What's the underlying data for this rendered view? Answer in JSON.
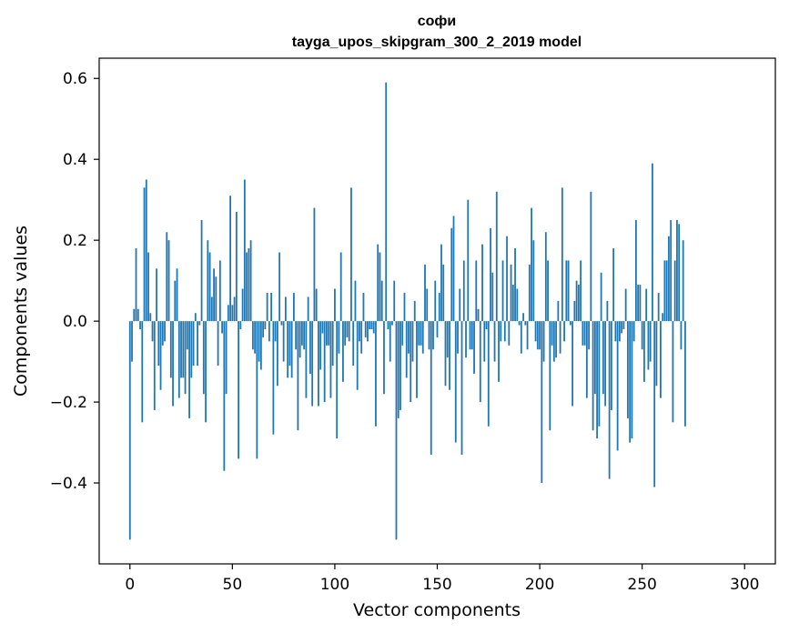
{
  "chart_data": {
    "type": "bar",
    "title": "софи",
    "subtitle": "tayga_upos_skipgram_300_2_2019 model",
    "xlabel": "Vector components",
    "ylabel": "Components values",
    "xlim": [
      -15,
      315
    ],
    "ylim": [
      -0.6,
      0.65
    ],
    "xticks": [
      0,
      50,
      100,
      150,
      200,
      250,
      300
    ],
    "yticks": [
      -0.4,
      -0.2,
      0.0,
      0.2,
      0.4,
      0.6
    ],
    "ytick_labels": [
      "−0.4",
      "−0.2",
      "0.0",
      "0.2",
      "0.4",
      "0.6"
    ],
    "xtick_labels": [
      "0",
      "50",
      "100",
      "150",
      "200",
      "250",
      "300"
    ],
    "bar_color": "#1f77b4",
    "grid": false,
    "values": [
      -0.54,
      -0.1,
      0.03,
      0.18,
      0.03,
      -0.02,
      -0.25,
      0.33,
      0.35,
      0.17,
      0.02,
      -0.05,
      -0.22,
      0.13,
      -0.11,
      -0.17,
      -0.06,
      -0.05,
      0.22,
      0.2,
      -0.14,
      -0.21,
      0.1,
      0.13,
      -0.19,
      -0.14,
      -0.14,
      -0.18,
      -0.07,
      -0.24,
      -0.14,
      -0.11,
      0.02,
      -0.11,
      -0.01,
      0.25,
      -0.18,
      -0.25,
      0.2,
      0.17,
      0.06,
      0.13,
      0.11,
      -0.11,
      0.15,
      -0.03,
      -0.37,
      -0.18,
      0.04,
      0.31,
      0.04,
      0.06,
      0.27,
      -0.34,
      -0.02,
      0.08,
      0.35,
      0.17,
      0.18,
      0.2,
      -0.07,
      -0.08,
      -0.34,
      -0.1,
      -0.12,
      -0.04,
      -0.02,
      0.07,
      -0.05,
      0.07,
      -0.28,
      -0.05,
      -0.16,
      0.17,
      -0.01,
      -0.1,
      0.06,
      -0.14,
      -0.11,
      -0.14,
      0.07,
      -0.07,
      -0.27,
      -0.09,
      -0.06,
      -0.07,
      -0.19,
      0.06,
      -0.13,
      -0.21,
      0.28,
      0.08,
      -0.21,
      -0.12,
      -0.03,
      -0.2,
      -0.06,
      -0.06,
      -0.19,
      -0.11,
      0.08,
      -0.29,
      -0.08,
      0.17,
      -0.15,
      -0.06,
      -0.04,
      -0.05,
      0.33,
      -0.11,
      0.1,
      -0.17,
      -0.05,
      -0.08,
      0.07,
      -0.04,
      -0.05,
      -0.02,
      -0.02,
      -0.03,
      -0.26,
      0.19,
      0.17,
      0.1,
      -0.18,
      0.59,
      -0.02,
      -0.1,
      -0.01,
      0.1,
      -0.54,
      -0.24,
      -0.22,
      -0.06,
      0.07,
      -0.14,
      -0.08,
      -0.2,
      -0.1,
      0.05,
      -0.19,
      -0.06,
      -0.06,
      -0.08,
      0.14,
      0.08,
      -0.07,
      -0.33,
      -0.07,
      0.1,
      -0.04,
      0.07,
      0.19,
      0.14,
      -0.16,
      -0.09,
      -0.17,
      0.23,
      0.26,
      -0.3,
      -0.08,
      0.08,
      -0.33,
      0.15,
      -0.09,
      0.3,
      -0.07,
      -0.07,
      -0.13,
      0.15,
      0.03,
      -0.2,
      0.19,
      -0.1,
      -0.02,
      -0.26,
      0.23,
      0.12,
      -0.1,
      0.32,
      -0.15,
      -0.05,
      0.15,
      -0.05,
      0.21,
      -0.06,
      0.14,
      0.09,
      0.18,
      0.08,
      -0.01,
      -0.08,
      0.02,
      -0.01,
      -0.07,
      0.14,
      0.28,
      0.2,
      -0.05,
      -0.07,
      -0.07,
      -0.4,
      -0.1,
      0.22,
      0.15,
      -0.27,
      -0.06,
      -0.1,
      -0.09,
      0.05,
      -0.08,
      0.33,
      -0.05,
      0.15,
      0.15,
      -0.01,
      -0.21,
      0.05,
      0.1,
      0.09,
      0.15,
      -0.06,
      -0.06,
      -0.19,
      -0.07,
      0.32,
      -0.27,
      -0.18,
      -0.29,
      -0.26,
      0.12,
      -0.18,
      -0.21,
      0.05,
      -0.39,
      -0.22,
      0.18,
      -0.05,
      -0.32,
      -0.05,
      -0.03,
      -0.02,
      0.08,
      -0.24,
      -0.3,
      -0.29,
      -0.05,
      0.25,
      0.09,
      0.09,
      -0.07,
      -0.15,
      0.08,
      -0.12,
      -0.1,
      0.39,
      -0.41,
      -0.16,
      0.07,
      -0.19,
      0.02,
      0.15,
      0.15,
      0.21,
      0.25,
      -0.25,
      0.15,
      0.25,
      0.24,
      -0.07,
      0.2,
      -0.26
    ],
    "highlight_values": [
      -0.54,
      0.35,
      -0.37,
      0.35,
      0.59,
      -0.54,
      -0.4,
      0.39
    ]
  }
}
